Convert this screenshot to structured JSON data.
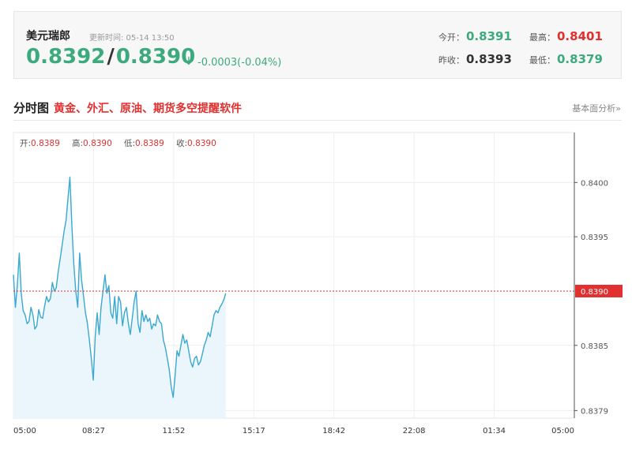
{
  "quote": {
    "name": "美元瑞郎",
    "update_time": "更新时间: 05-14 13:50",
    "bid": "0.8392",
    "ask": "0.8390",
    "arrow": "↓",
    "change": "-0.0003(-0.04%)",
    "open_label": "今开：",
    "open_value": "0.8391",
    "high_label": "最高：",
    "high_value": "0.8401",
    "prev_close_label": "昨收：",
    "prev_close_value": "0.8393",
    "low_label": "最低：",
    "low_value": "0.8379"
  },
  "section": {
    "title": "分时图",
    "promo": "黄金、外汇、原油、期货多空提醒软件",
    "link": "基本面分析»"
  },
  "colors": {
    "up": "#e03030",
    "down": "#3daa7d",
    "line": "#3aa8d0",
    "fill": "#eaf6fb"
  },
  "chart_data": {
    "type": "area",
    "ohlc_label": {
      "open": "开:0.8389",
      "high": "高:0.8390",
      "low": "低:0.8389",
      "close": "收:0.8390"
    },
    "x_ticks": [
      "05:00",
      "08:27",
      "11:52",
      "15:17",
      "18:42",
      "22:08",
      "01:34",
      "05:00"
    ],
    "y_ticks": [
      0.84,
      0.8395,
      0.8385,
      0.8379
    ],
    "y_tick_labels": [
      "0.8400",
      "0.8395",
      "0.8385",
      "0.8379"
    ],
    "reference_line": {
      "value": 0.839,
      "label": "0.8390"
    },
    "ylim": [
      0.83783,
      0.84046
    ],
    "x_range_minutes": [
      0,
      1440
    ],
    "series": [
      {
        "x": [
          0,
          5,
          10,
          15,
          20,
          25,
          30,
          35,
          40,
          45,
          50,
          55,
          60,
          65,
          70,
          75,
          80,
          85,
          90,
          95,
          100,
          105,
          110,
          115,
          120,
          125,
          130,
          135,
          140,
          145,
          150,
          155,
          160,
          165,
          170,
          175,
          180,
          185,
          190,
          195,
          200,
          205,
          210,
          215,
          220,
          225,
          230,
          235,
          240,
          245,
          250,
          255,
          260,
          265,
          270,
          275,
          280,
          285,
          290,
          295,
          300,
          305,
          310,
          315,
          320,
          325,
          330,
          335,
          340,
          345,
          350,
          355,
          360,
          365,
          370,
          375,
          380,
          385,
          390,
          395,
          400,
          405,
          410,
          415,
          420,
          425,
          430,
          435,
          440,
          445,
          450,
          455,
          460,
          465,
          470,
          475,
          480,
          485,
          490,
          495,
          500,
          505,
          510,
          515,
          520,
          525,
          530,
          535,
          540,
          545
        ],
        "values": [
          0.83915,
          0.83885,
          0.83905,
          0.83935,
          0.83898,
          0.83882,
          0.83878,
          0.8387,
          0.83872,
          0.83885,
          0.83878,
          0.83865,
          0.83868,
          0.83883,
          0.83876,
          0.83875,
          0.83886,
          0.83895,
          0.8389,
          0.83893,
          0.83908,
          0.839,
          0.83903,
          0.83918,
          0.8393,
          0.83942,
          0.83955,
          0.83965,
          0.83985,
          0.84005,
          0.8396,
          0.83925,
          0.839,
          0.83885,
          0.83935,
          0.8391,
          0.83895,
          0.8388,
          0.8387,
          0.83855,
          0.83838,
          0.83818,
          0.83858,
          0.8388,
          0.8386,
          0.83885,
          0.839,
          0.83915,
          0.83898,
          0.83905,
          0.8388,
          0.83875,
          0.83895,
          0.8387,
          0.83895,
          0.8389,
          0.83868,
          0.8388,
          0.83885,
          0.8387,
          0.8386,
          0.83875,
          0.8389,
          0.839,
          0.8387,
          0.83862,
          0.83882,
          0.83872,
          0.83878,
          0.83872,
          0.83875,
          0.83865,
          0.8387,
          0.83868,
          0.83878,
          0.83872,
          0.8387,
          0.83855,
          0.83848,
          0.83838,
          0.83828,
          0.83812,
          0.83802,
          0.83822,
          0.83845,
          0.8384,
          0.8385,
          0.8386,
          0.83852,
          0.83855,
          0.83845,
          0.83835,
          0.8383,
          0.83838,
          0.8384,
          0.83832,
          0.83835,
          0.83842,
          0.8385,
          0.83855,
          0.83862,
          0.83858,
          0.83868,
          0.83878,
          0.83882,
          0.8388,
          0.83885,
          0.83888,
          0.83892,
          0.83898
        ]
      }
    ]
  }
}
